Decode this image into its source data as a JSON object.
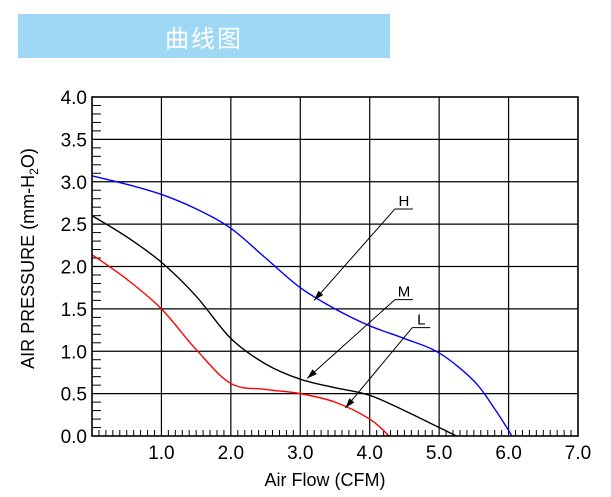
{
  "title": "曲线图",
  "chart_data": {
    "type": "line",
    "title": "曲线图",
    "xlabel": "Air Flow (CFM)",
    "ylabel_main": "AIR PRESSURE (mm-H",
    "ylabel_sub": "2",
    "ylabel_end": "O)",
    "xlim": [
      0,
      7
    ],
    "ylim": [
      0,
      4
    ],
    "x_ticks": [
      "1.0",
      "2.0",
      "3.0",
      "4.0",
      "5.0",
      "6.0",
      "7.0"
    ],
    "y_ticks": [
      "0.0",
      "0.5",
      "1.0",
      "1.5",
      "2.0",
      "2.5",
      "3.0",
      "3.5",
      "4.0"
    ],
    "grid": true,
    "series": [
      {
        "name": "H",
        "color": "#0000ff",
        "x": [
          0,
          0.5,
          1.0,
          1.5,
          2.0,
          2.5,
          3.0,
          3.5,
          4.0,
          4.5,
          5.0,
          5.5,
          5.8,
          6.05
        ],
        "y": [
          3.07,
          2.97,
          2.85,
          2.68,
          2.45,
          2.1,
          1.75,
          1.5,
          1.3,
          1.15,
          0.98,
          0.65,
          0.32,
          0
        ]
      },
      {
        "name": "M",
        "color": "#000000",
        "x": [
          0,
          0.5,
          1.0,
          1.5,
          2.0,
          2.5,
          3.0,
          3.5,
          4.0,
          4.5,
          5.0,
          5.25
        ],
        "y": [
          2.6,
          2.35,
          2.05,
          1.65,
          1.15,
          0.85,
          0.67,
          0.57,
          0.48,
          0.3,
          0.1,
          0
        ]
      },
      {
        "name": "L",
        "color": "#ff0000",
        "x": [
          0,
          0.5,
          1.0,
          1.5,
          2.0,
          2.5,
          3.0,
          3.5,
          4.0,
          4.28
        ],
        "y": [
          2.14,
          1.85,
          1.5,
          1.02,
          0.62,
          0.55,
          0.5,
          0.4,
          0.2,
          0
        ]
      }
    ],
    "annotations": [
      {
        "label": "H",
        "at": [
          3.2,
          1.6
        ],
        "text_at": [
          4.45,
          2.75
        ]
      },
      {
        "label": "M",
        "at": [
          3.1,
          0.68
        ],
        "text_at": [
          4.45,
          1.68
        ]
      },
      {
        "label": "L",
        "at": [
          3.65,
          0.33
        ],
        "text_at": [
          4.7,
          1.35
        ]
      }
    ]
  }
}
